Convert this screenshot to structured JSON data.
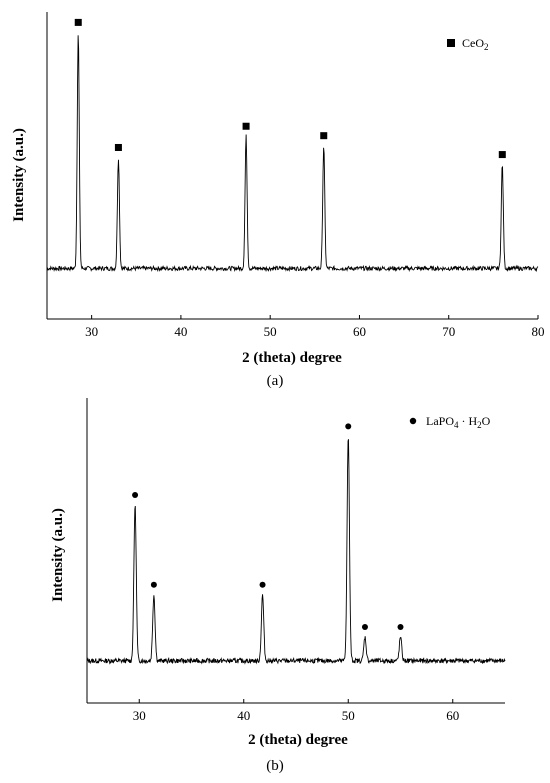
{
  "chart_data": [
    {
      "type": "line",
      "panel_label": "(a)",
      "xlabel": "2 (theta) degree",
      "ylabel": "Intensity (a.u.)",
      "xlim": [
        25,
        80
      ],
      "xticks": [
        30,
        40,
        50,
        60,
        70,
        80
      ],
      "y_ticks_shown": false,
      "legend": {
        "marker": "square",
        "label_main": "CeO",
        "label_sub": "2",
        "placement": "top-right"
      },
      "baseline": 0.1,
      "peaks": [
        {
          "x": 28.5,
          "height": 1.0
        },
        {
          "x": 33.0,
          "height": 0.47
        },
        {
          "x": 47.3,
          "height": 0.56
        },
        {
          "x": 56.0,
          "height": 0.52
        },
        {
          "x": 76.0,
          "height": 0.44
        }
      ],
      "markers": [
        {
          "x": 28.5
        },
        {
          "x": 33.0
        },
        {
          "x": 47.3
        },
        {
          "x": 56.0
        },
        {
          "x": 76.0
        }
      ]
    },
    {
      "type": "line",
      "panel_label": "(b)",
      "xlabel": "2 (theta) degree",
      "ylabel": "Intensity (a.u.)",
      "xlim": [
        25,
        65
      ],
      "xticks": [
        30,
        40,
        50,
        60
      ],
      "y_ticks_shown": false,
      "legend": {
        "marker": "circle",
        "label_main": "LaPO",
        "label_sub": "4",
        "label_rest1": " · H",
        "label_sub2": "2",
        "label_rest2": "O",
        "placement": "top-right"
      },
      "baseline": 0.05,
      "peaks": [
        {
          "x": 29.6,
          "height": 0.59
        },
        {
          "x": 31.4,
          "height": 0.25
        },
        {
          "x": 41.8,
          "height": 0.25
        },
        {
          "x": 50.0,
          "height": 0.85
        },
        {
          "x": 51.6,
          "height": 0.09
        },
        {
          "x": 55.0,
          "height": 0.09
        }
      ],
      "markers": [
        {
          "x": 29.6
        },
        {
          "x": 31.4
        },
        {
          "x": 41.8
        },
        {
          "x": 50.0
        },
        {
          "x": 51.6
        },
        {
          "x": 55.0
        }
      ]
    }
  ]
}
